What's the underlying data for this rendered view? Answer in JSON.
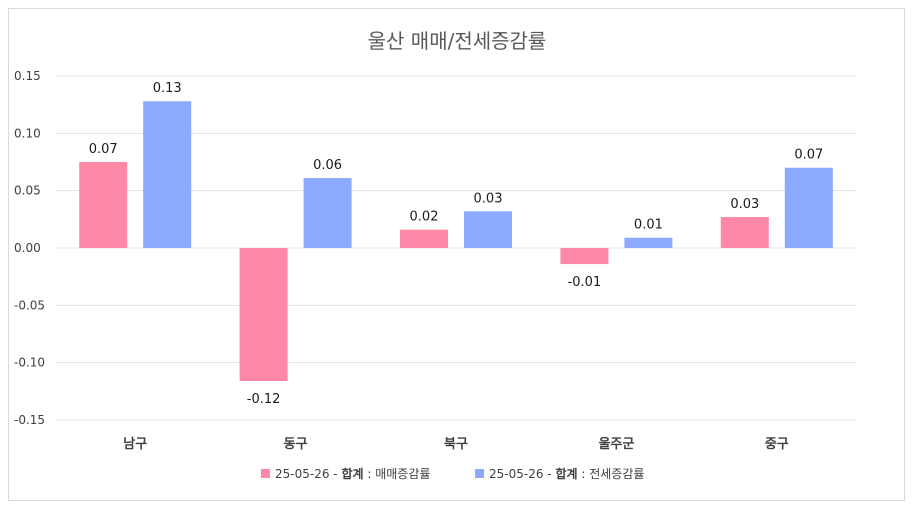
{
  "chart_data": {
    "type": "bar",
    "title": "울산 매매/전세증감률",
    "categories": [
      "남구",
      "동구",
      "북구",
      "울주군",
      "중구"
    ],
    "series": [
      {
        "name_prefix": "25-05-26 - ",
        "name_bold": "합계",
        "name_suffix": " : 매매증감률",
        "color": "#ff88a6",
        "values": [
          0.075,
          -0.116,
          0.016,
          -0.014,
          0.027
        ],
        "labels": [
          "0.07",
          "-0.12",
          "0.02",
          "-0.01",
          "0.03"
        ]
      },
      {
        "name_prefix": "25-05-26 - ",
        "name_bold": "합계",
        "name_suffix": " : 전세증감률",
        "color": "#8caaff",
        "values": [
          0.128,
          0.061,
          0.032,
          0.009,
          0.07
        ],
        "labels": [
          "0.13",
          "0.06",
          "0.03",
          "0.01",
          "0.07"
        ]
      }
    ],
    "yticks": [
      "0.15",
      "0.10",
      "0.05",
      "0.00",
      "-0.05",
      "-0.10",
      "-0.15"
    ],
    "ylim": [
      -0.15,
      0.15
    ],
    "grid": true,
    "legend": "bottom"
  }
}
